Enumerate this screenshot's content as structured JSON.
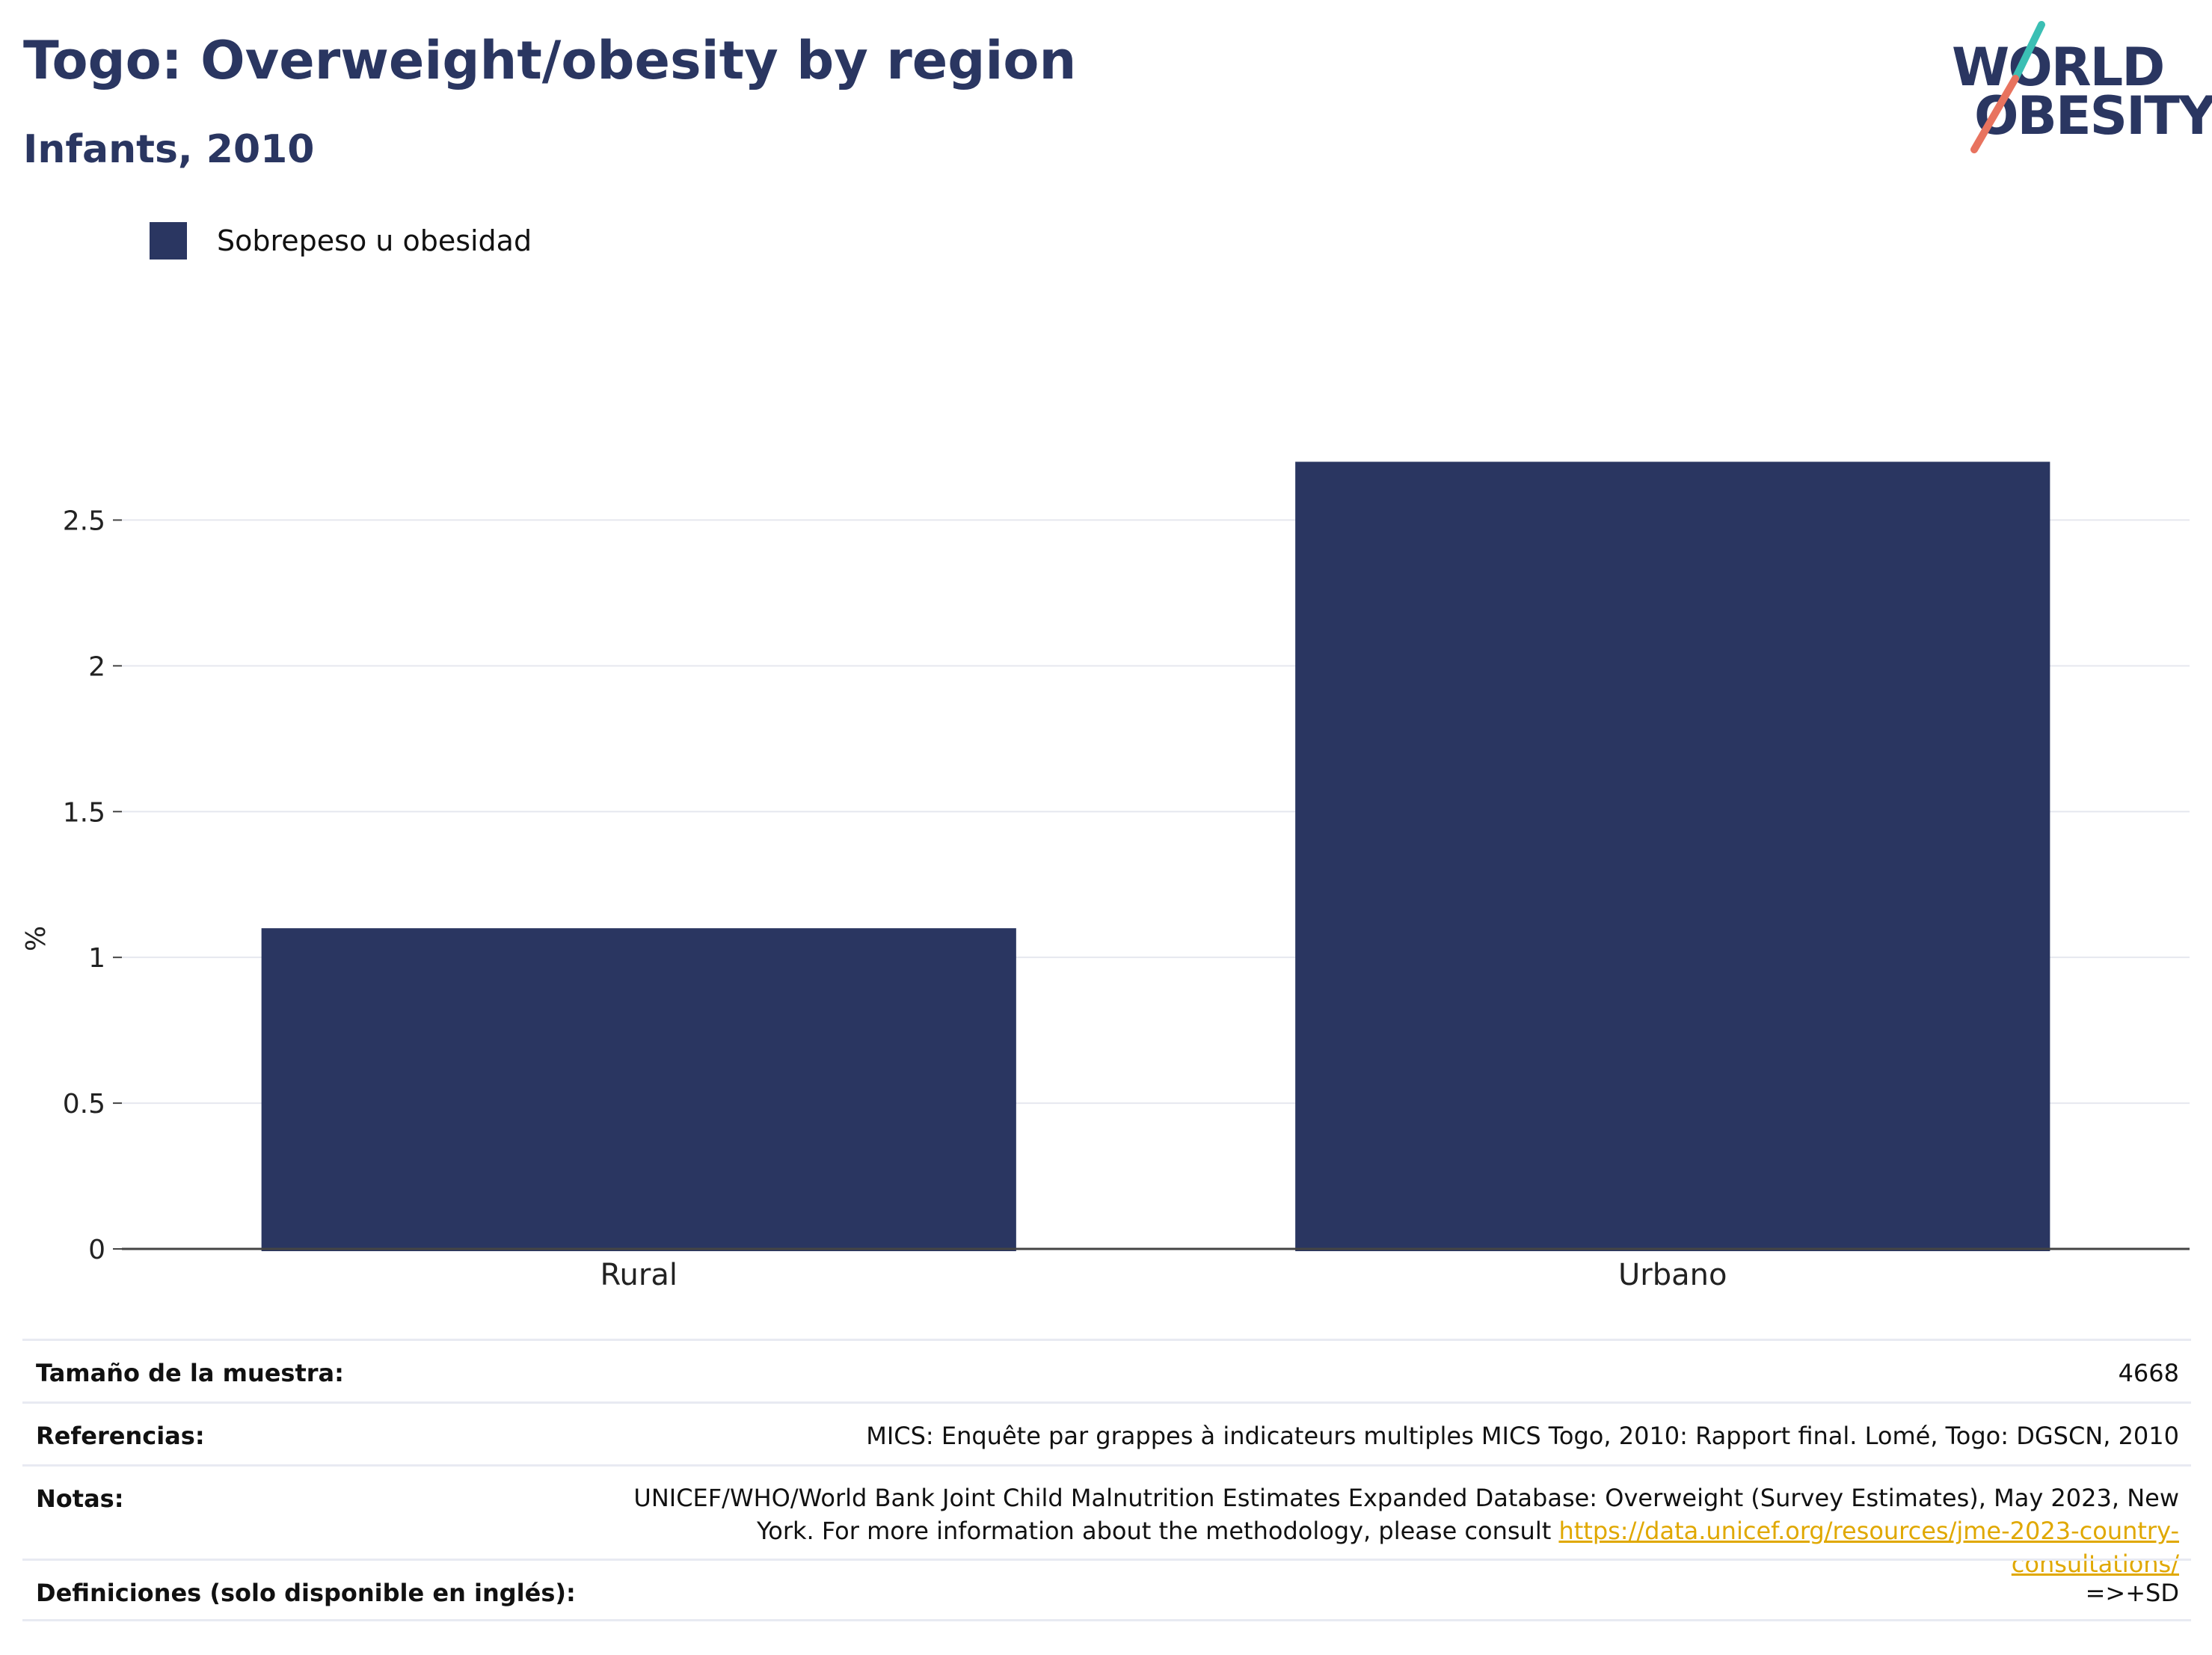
{
  "header": {
    "title": "Togo: Overweight/obesity by region",
    "subtitle": "Infants, 2010"
  },
  "logo": {
    "line1": "WORLD",
    "line2": "OBESITY",
    "colors": {
      "text": "#2a3661",
      "slash_top": "#3bbfb4",
      "slash_bottom": "#e8735f"
    }
  },
  "legend": {
    "label": "Sobrepeso u obesidad",
    "color": "#2a3661"
  },
  "chart_data": {
    "type": "bar",
    "categories": [
      "Rural",
      "Urbano"
    ],
    "series": [
      {
        "name": "Sobrepeso u obesidad",
        "values": [
          1.1,
          2.7
        ],
        "color": "#2a3661"
      }
    ],
    "title": "Togo: Overweight/obesity by region",
    "subtitle": "Infants, 2010",
    "xlabel": "",
    "ylabel": "%",
    "ylim": [
      0,
      2.95
    ],
    "yticks": [
      0,
      0.5,
      1,
      1.5,
      2,
      2.5
    ],
    "ytick_labels": [
      "0",
      "0.5",
      "1",
      "1.5",
      "2",
      "2.5"
    ],
    "grid": true,
    "legend_position": "top-left"
  },
  "footer": {
    "sample_size": {
      "label": "Tamaño de la muestra:",
      "value": "4668"
    },
    "references": {
      "label": "Referencias:",
      "value": "MICS: Enquête par grappes à indicateurs multiples MICS Togo, 2010: Rapport final. Lomé, Togo: DGSCN, 2010"
    },
    "notes": {
      "label": "Notas:",
      "text": "UNICEF/WHO/World Bank Joint Child Malnutrition Estimates Expanded Database: Overweight (Survey Estimates), May 2023, New York. For more information about the methodology, please consult",
      "link": "https://data.unicef.org/resources/jme-2023-country-consultations/"
    },
    "definitions": {
      "label": "Definiciones (solo disponible en inglés):",
      "value": "=>+SD"
    }
  }
}
